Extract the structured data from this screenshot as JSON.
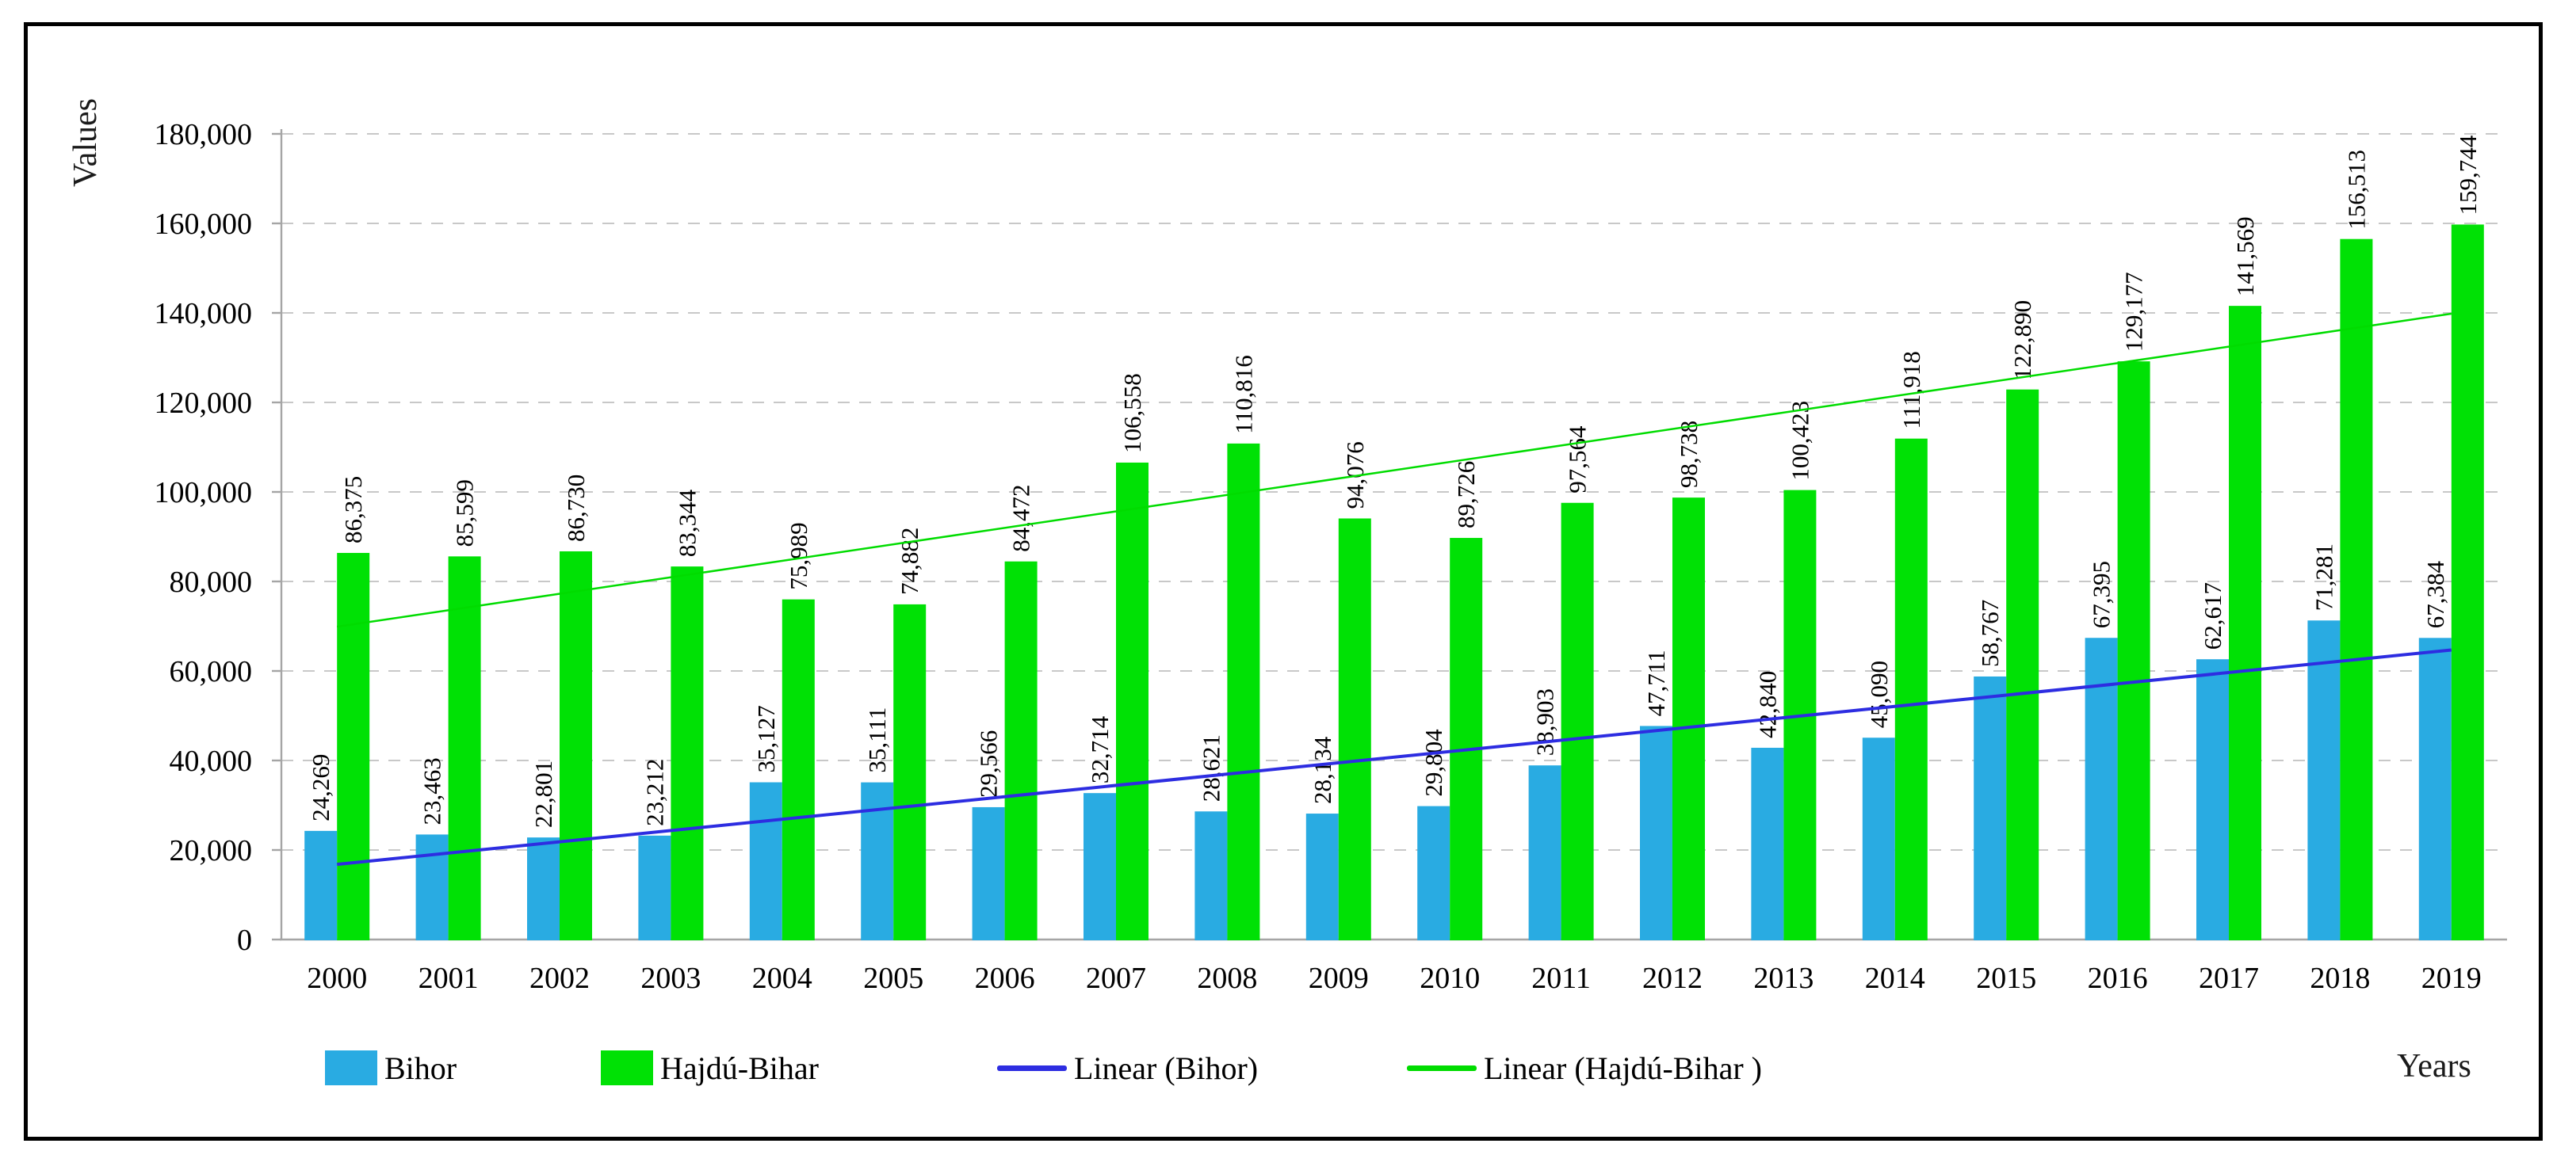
{
  "chart_data": {
    "type": "bar",
    "title": "",
    "xlabel": "Years",
    "ylabel": "Values",
    "ylim": [
      0,
      180000
    ],
    "ytick_step": 20000,
    "grid": "horizontal-dashed",
    "legend_position": "bottom",
    "categories": [
      "2000",
      "2001",
      "2002",
      "2003",
      "2004",
      "2005",
      "2006",
      "2007",
      "2008",
      "2009",
      "2010",
      "2011",
      "2012",
      "2013",
      "2014",
      "2015",
      "2016",
      "2017",
      "2018",
      "2019"
    ],
    "series": [
      {
        "name": "Bihor",
        "color": "#29abe2",
        "values": [
          24269,
          23463,
          22801,
          23212,
          35127,
          35111,
          29566,
          32714,
          28621,
          28134,
          29804,
          38903,
          47711,
          42840,
          45090,
          58767,
          67395,
          62617,
          71281,
          67384
        ]
      },
      {
        "name": "Hajdú-Bihar",
        "color": "#00e105",
        "values": [
          86375,
          85599,
          86730,
          83344,
          75989,
          74882,
          84472,
          106558,
          110816,
          94076,
          89726,
          97564,
          98738,
          100423,
          111918,
          122890,
          129177,
          141569,
          156513,
          159744
        ]
      }
    ],
    "trendlines": [
      {
        "label": "Linear (Bihor)",
        "series_index": 0,
        "color": "#2d2de1",
        "width": 4
      },
      {
        "label": "Linear (Hajdú-Bihar )",
        "series_index": 1,
        "color": "#00dc00",
        "width": 2.5
      }
    ],
    "colors": {
      "gridline": "#c8c8c8",
      "axis": "#a5a5a5",
      "label_text": "#000000",
      "frame_border": "#000000"
    }
  }
}
